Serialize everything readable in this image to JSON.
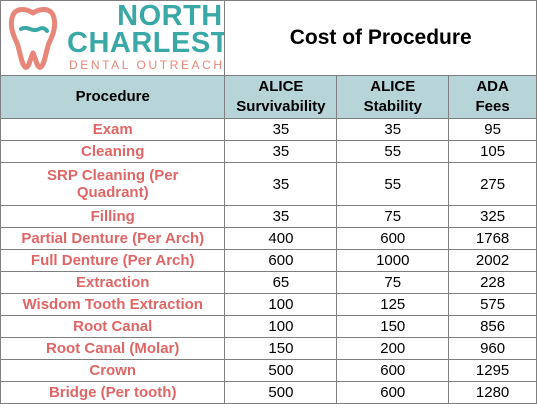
{
  "logo": {
    "line1": "NORTH",
    "line2": "CHARLESTON",
    "line3": "DENTAL OUTREACH",
    "icon": "tooth-icon",
    "colors": {
      "teal": "#3aa8a6",
      "coral": "#e8867a"
    }
  },
  "title": "Cost of Procedure",
  "headers": {
    "procedure": "Procedure",
    "alice_surv_1": "ALICE",
    "alice_surv_2": "Survivability",
    "alice_stab_1": "ALICE",
    "alice_stab_2": "Stability",
    "ada_1": "ADA",
    "ada_2": "Fees"
  },
  "rows": [
    {
      "procedure": "Exam",
      "survivability": "35",
      "stability": "35",
      "ada": "95"
    },
    {
      "procedure": "Cleaning",
      "survivability": "35",
      "stability": "55",
      "ada": "105"
    },
    {
      "procedure": "SRP Cleaning (Per Quadrant)",
      "procedure_l1": "SRP Cleaning (Per",
      "procedure_l2": "Quadrant)",
      "survivability": "35",
      "stability": "55",
      "ada": "275"
    },
    {
      "procedure": "Filling",
      "survivability": "35",
      "stability": "75",
      "ada": "325"
    },
    {
      "procedure": "Partial Denture (Per Arch)",
      "survivability": "400",
      "stability": "600",
      "ada": "1768"
    },
    {
      "procedure": "Full Denture (Per Arch)",
      "survivability": "600",
      "stability": "1000",
      "ada": "2002"
    },
    {
      "procedure": "Extraction",
      "survivability": "65",
      "stability": "75",
      "ada": "228"
    },
    {
      "procedure": "Wisdom Tooth Extraction",
      "survivability": "100",
      "stability": "125",
      "ada": "575"
    },
    {
      "procedure": "Root Canal",
      "survivability": "100",
      "stability": "150",
      "ada": "856"
    },
    {
      "procedure": "Root Canal (Molar)",
      "survivability": "150",
      "stability": "200",
      "ada": "960"
    },
    {
      "procedure": "Crown",
      "survivability": "500",
      "stability": "600",
      "ada": "1295"
    },
    {
      "procedure": "Bridge (Per tooth)",
      "survivability": "500",
      "stability": "600",
      "ada": "1280"
    }
  ],
  "colors": {
    "header_bg": "#b7d4d8",
    "procedure_text": "#e06666",
    "border": "#7f7f7f"
  }
}
